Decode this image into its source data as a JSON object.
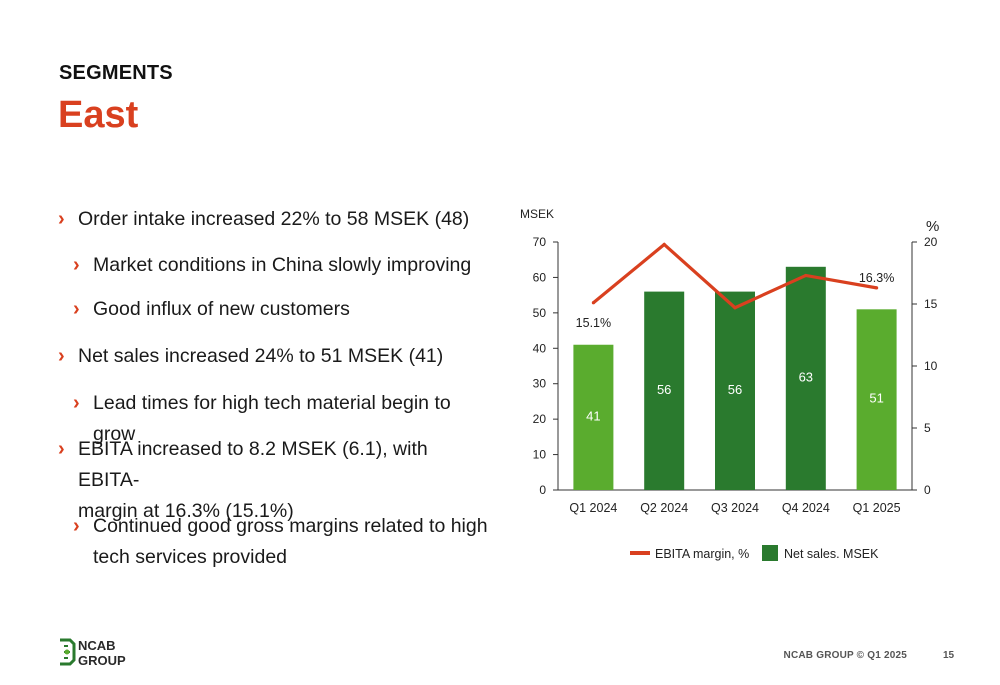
{
  "header": {
    "kicker": "SEGMENTS",
    "title": "East"
  },
  "colors": {
    "accent": "#d9401f",
    "bar_light": "#5aac2e",
    "bar_dark": "#2a7a2e",
    "line": "#d9401f"
  },
  "bullets": [
    {
      "level": 1,
      "lines": [
        "Order intake increased 22% to 58 MSEK (48)"
      ]
    },
    {
      "level": 2,
      "lines": [
        "Market conditions in China slowly improving"
      ]
    },
    {
      "level": 2,
      "lines": [
        "Good influx of new customers"
      ]
    },
    {
      "level": 1,
      "lines": [
        "Net sales increased 24% to 51 MSEK (41)"
      ]
    },
    {
      "level": 2,
      "lines": [
        "Lead times for high tech material begin to grow"
      ]
    },
    {
      "level": 1,
      "lines": [
        "EBITA increased to 8.2 MSEK (6.1), with EBITA-",
        "margin at 16.3% (15.1%)"
      ]
    },
    {
      "level": 2,
      "lines": [
        "Continued good gross margins related to high",
        "tech services provided"
      ]
    }
  ],
  "chart_data": {
    "type": "bar",
    "categories": [
      "Q1 2024",
      "Q2 2024",
      "Q3 2024",
      "Q4 2024",
      "Q1 2025"
    ],
    "ylabel": "MSEK",
    "y2label": "%",
    "ylim": [
      0,
      70
    ],
    "y2lim": [
      0,
      20
    ],
    "yticks": [
      "0",
      "10",
      "20",
      "30",
      "40",
      "50",
      "60",
      "70"
    ],
    "y2ticks": [
      "0",
      "5",
      "10",
      "15",
      "20"
    ],
    "grid": false,
    "legend_position": "bottom",
    "series": [
      {
        "name": "Net sales. MSEK",
        "type": "bar",
        "axis": "left",
        "values": [
          41,
          56,
          56,
          63,
          51
        ],
        "labels": [
          "41",
          "56",
          "56",
          "63",
          "51"
        ],
        "colors": [
          "#5aac2e",
          "#2a7a2e",
          "#2a7a2e",
          "#2a7a2e",
          "#5aac2e"
        ]
      },
      {
        "name": "EBITA margin, %",
        "type": "line",
        "axis": "right",
        "values": [
          15.1,
          19.8,
          14.7,
          17.3,
          16.3
        ],
        "labels": [
          "15.1%",
          "",
          "",
          "",
          "16.3%"
        ]
      }
    ]
  },
  "footer": {
    "text": "NCAB GROUP © Q1 2025",
    "page": "15",
    "logo_text": [
      "NCAB",
      "GROUP"
    ]
  }
}
